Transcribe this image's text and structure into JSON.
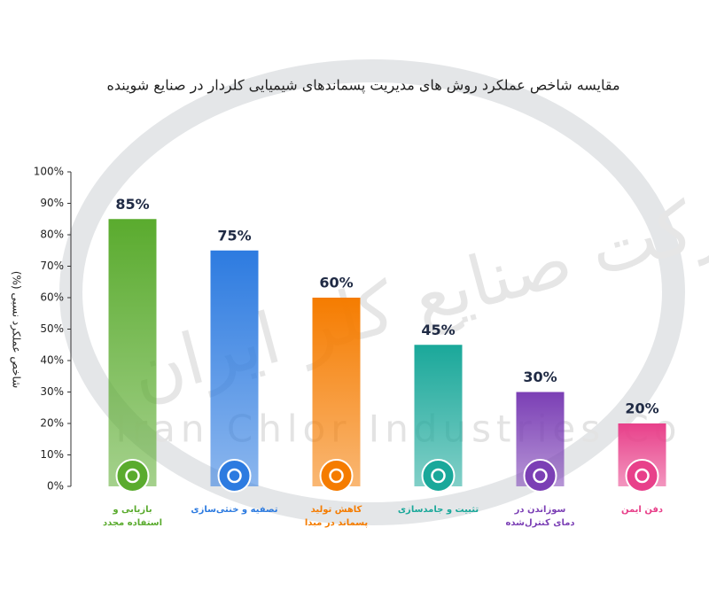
{
  "chart_data": {
    "type": "bar",
    "title": "مقایسه شاخص عملکرد روش های مدیریت پسماندهای شیمیایی کلردار در صنایع شوینده",
    "y_label": "شاخص عملکرد نسبی (%)",
    "watermark": "Iran Chlor Industries Co",
    "watermark_fa": "شرکت صنایع کلر ایران",
    "categories": [
      "بازیابی و استفاده مجدد",
      "تصفیه و خنثی‌سازی",
      "کاهش تولید پسماند در مبدا",
      "تثبیت و جامدسازی",
      "سوزاندن در دمای کنترل‌شده",
      "دفن ایمن"
    ],
    "values": [
      85,
      75,
      60,
      45,
      30,
      20
    ],
    "value_labels": [
      "85%",
      "75%",
      "60%",
      "45%",
      "30%",
      "20%"
    ],
    "colors": [
      "#5aab2e",
      "#2d7be0",
      "#f57c00",
      "#1aa89a",
      "#7b3fb5",
      "#e8408a"
    ],
    "ylim": [
      0,
      100
    ],
    "yticks": [
      {
        "value": 0,
        "label": "0%"
      },
      {
        "value": 10,
        "label": "10%"
      },
      {
        "value": 20,
        "label": "20%"
      },
      {
        "value": 30,
        "label": "30%"
      },
      {
        "value": 40,
        "label": "40%"
      },
      {
        "value": 50,
        "label": "50%"
      },
      {
        "value": 60,
        "label": "60%"
      },
      {
        "value": 70,
        "label": "70%"
      },
      {
        "value": 80,
        "label": "80%"
      },
      {
        "value": 90,
        "label": "90%"
      },
      {
        "value": 100,
        "label": "100%"
      }
    ]
  }
}
